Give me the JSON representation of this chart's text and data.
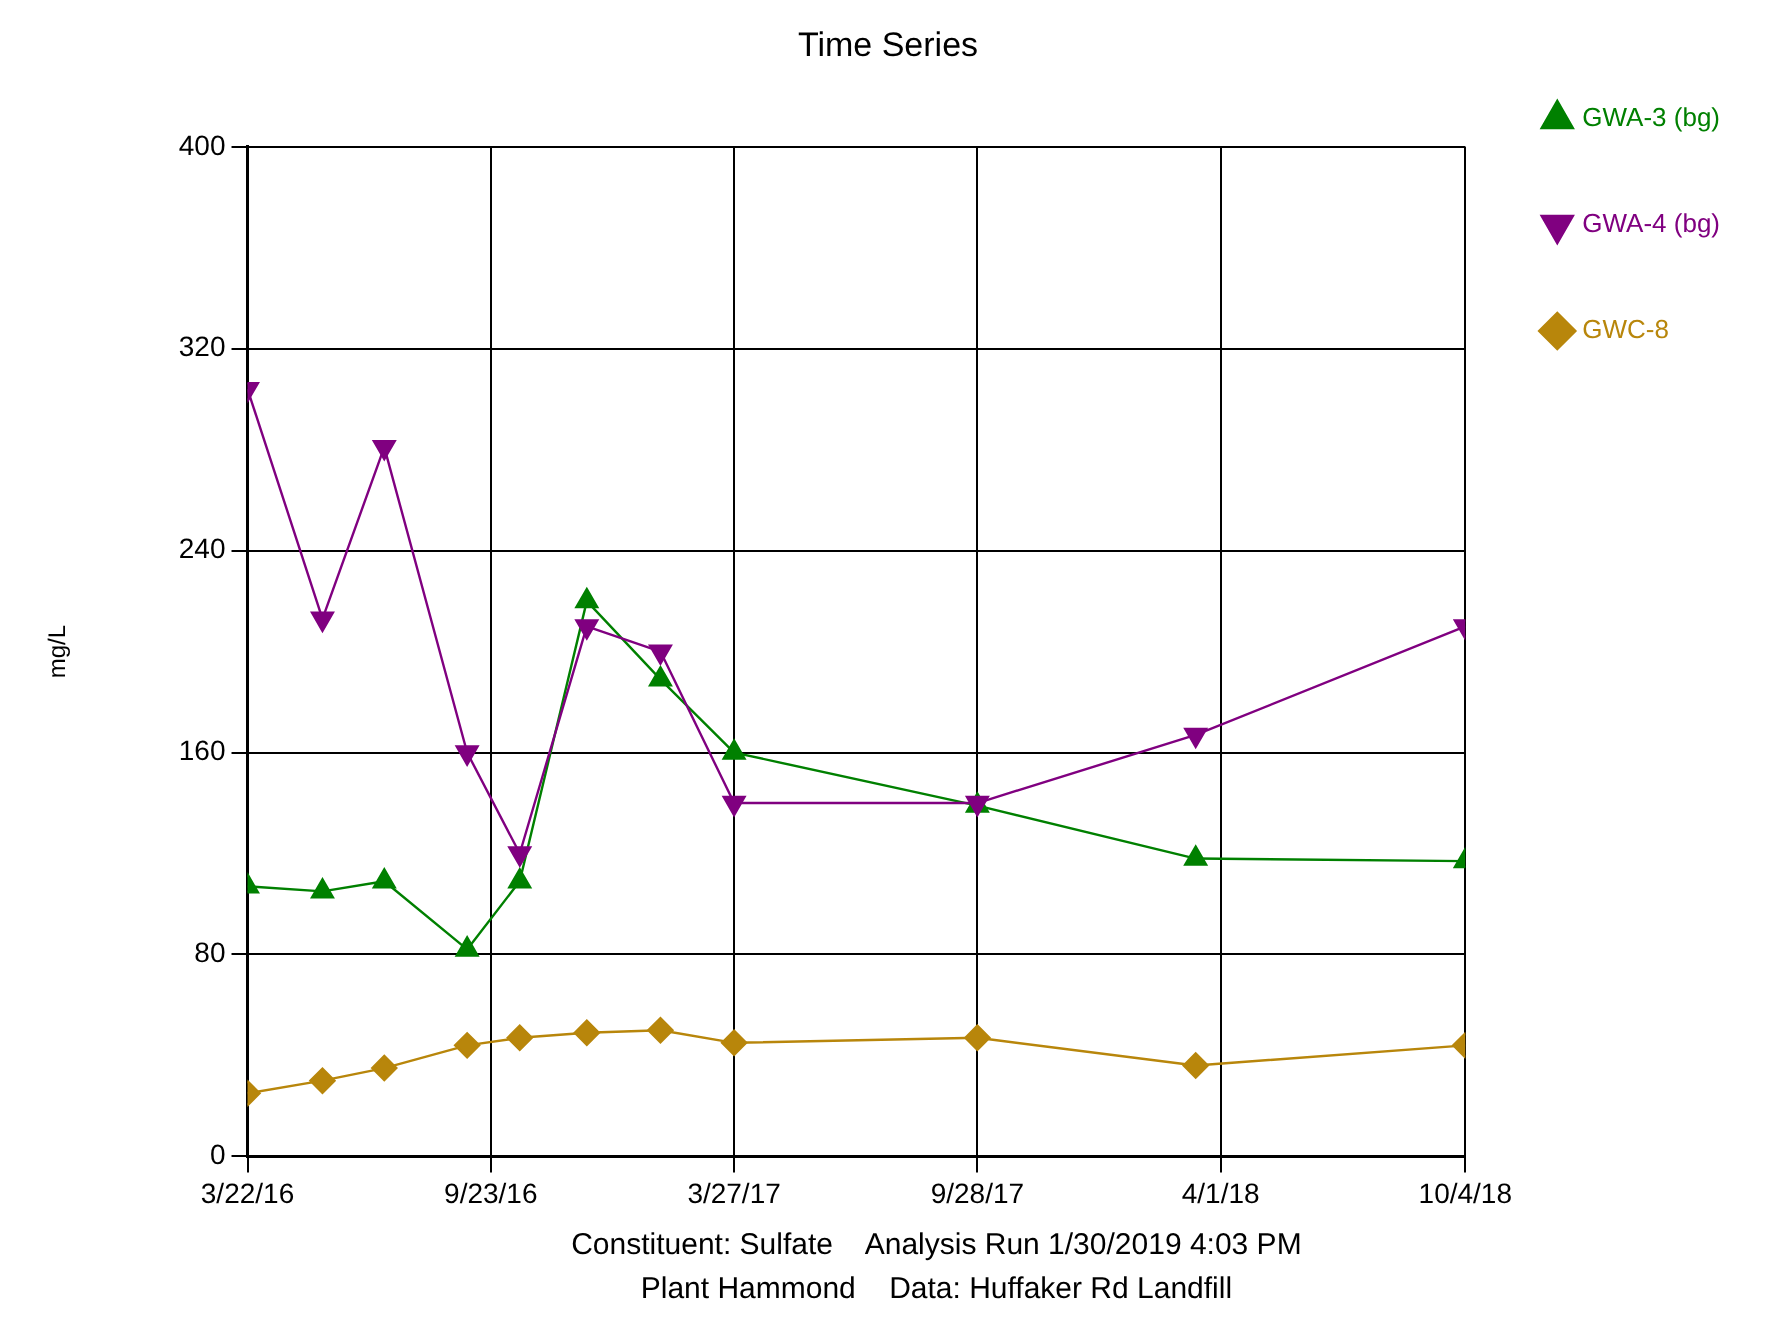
{
  "chart_data": {
    "type": "line",
    "title": "Time Series",
    "ylabel": "mg/L",
    "x": [
      "2016-03-22",
      "2016-05-18",
      "2016-07-04",
      "2016-09-05",
      "2016-10-15",
      "2016-12-05",
      "2017-01-30",
      "2017-03-27",
      "2017-09-28",
      "2018-03-13",
      "2018-10-04"
    ],
    "series": [
      {
        "name": "GWA-3 (bg)",
        "color": "#008000",
        "marker": "triangle",
        "values": [
          107,
          105,
          109,
          82,
          109,
          220,
          189,
          160,
          139,
          118,
          117
        ]
      },
      {
        "name": "GWA-4 (bg)",
        "color": "#800080",
        "marker": "triangle-down",
        "values": [
          304,
          213,
          281,
          160,
          120,
          210,
          200,
          140,
          140,
          167,
          210
        ]
      },
      {
        "name": "GWC-8",
        "color": "#b8860b",
        "marker": "diamond",
        "values": [
          25,
          30,
          35,
          44,
          47,
          49,
          50,
          45,
          47,
          36,
          44
        ]
      }
    ],
    "xlim": [
      "2016-03-22",
      "2018-10-04"
    ],
    "xticks": [
      {
        "value": "2016-03-22",
        "label": "3/22/16"
      },
      {
        "value": "2016-09-23",
        "label": "9/23/16"
      },
      {
        "value": "2017-03-27",
        "label": "3/27/17"
      },
      {
        "value": "2017-09-28",
        "label": "9/28/17"
      },
      {
        "value": "2018-04-01",
        "label": "4/1/18"
      },
      {
        "value": "2018-10-04",
        "label": "10/4/18"
      }
    ],
    "ylim": [
      0,
      400
    ],
    "yticks": [
      0,
      80,
      160,
      240,
      320,
      400
    ],
    "grid": true,
    "legend": "right",
    "annotations": [
      "Constituent: Sulfate    Analysis Run 1/30/2019 4:03 PM",
      "Plant Hammond    Data: Huffaker Rd Landfill"
    ]
  }
}
